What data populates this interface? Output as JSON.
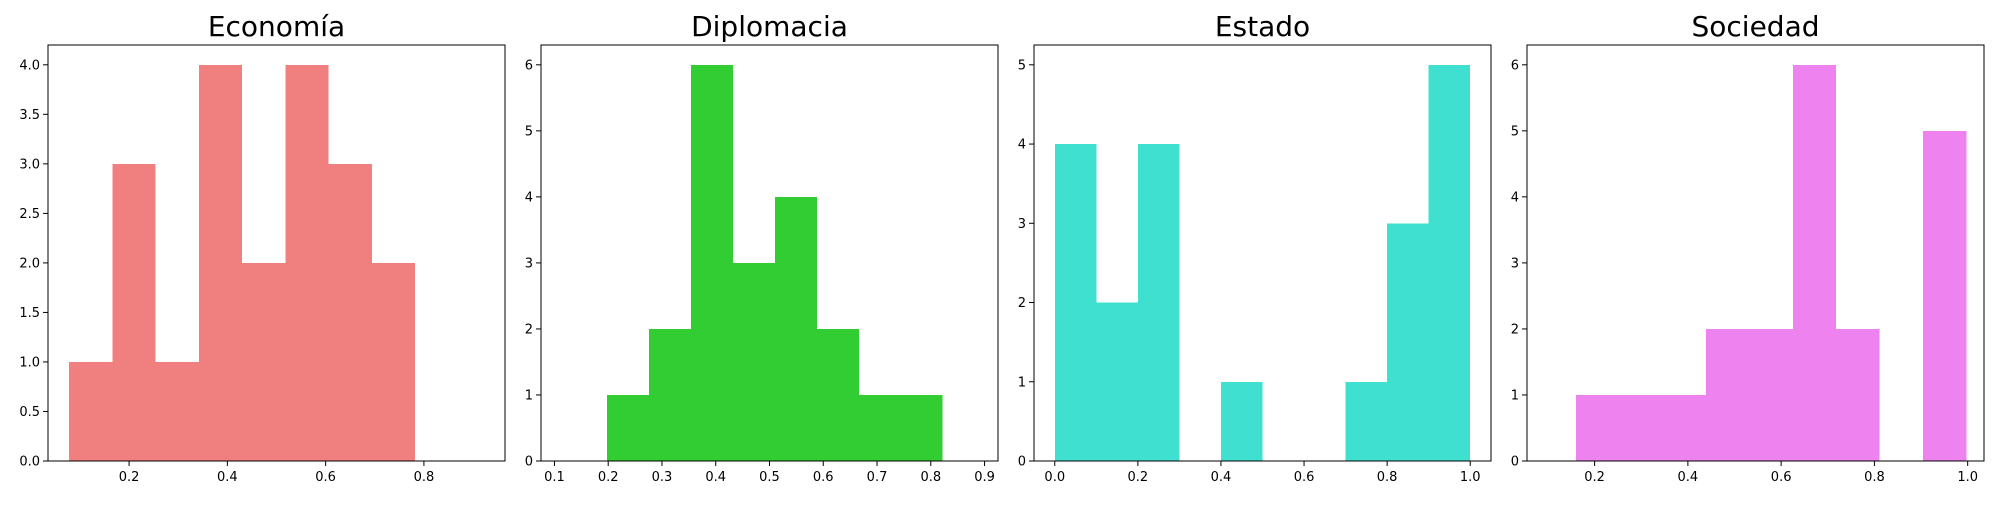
{
  "chart_data": [
    {
      "type": "bar",
      "title": "Economía",
      "color": "#f08080",
      "xlim": [
        0.035,
        0.965
      ],
      "ylim": [
        0,
        4.2
      ],
      "xticks": [
        0.2,
        0.4,
        0.6,
        0.8
      ],
      "xtick_labels": [
        "0.2",
        "0.4",
        "0.6",
        "0.8"
      ],
      "yticks": [
        0,
        0.5,
        1,
        1.5,
        2,
        2.5,
        3,
        3.5,
        4
      ],
      "ytick_labels": [
        "0.0",
        "0.5",
        "1.0",
        "1.5",
        "2.0",
        "2.5",
        "3.0",
        "3.5",
        "4.0"
      ],
      "bin_edges": [
        0.078,
        0.166,
        0.254,
        0.342,
        0.43,
        0.518,
        0.606,
        0.694,
        0.782
      ],
      "values": [
        1,
        3,
        1,
        4,
        2,
        4,
        3,
        2
      ]
    },
    {
      "type": "bar",
      "title": "Diplomacia",
      "color": "#32cd32",
      "xlim": [
        0.075,
        0.925
      ],
      "ylim": [
        0,
        6.3
      ],
      "xticks": [
        0.1,
        0.2,
        0.3,
        0.4,
        0.5,
        0.6,
        0.7,
        0.8,
        0.9
      ],
      "xtick_labels": [
        "0.1",
        "0.2",
        "0.3",
        "0.4",
        "0.5",
        "0.6",
        "0.7",
        "0.8",
        "0.9"
      ],
      "yticks": [
        0,
        1,
        2,
        3,
        4,
        5,
        6
      ],
      "ytick_labels": [
        "0",
        "1",
        "2",
        "3",
        "4",
        "5",
        "6"
      ],
      "bin_edges": [
        0.198,
        0.276,
        0.354,
        0.432,
        0.51,
        0.588,
        0.666,
        0.744,
        0.822
      ],
      "values": [
        1,
        2,
        6,
        3,
        4,
        2,
        1,
        1
      ]
    },
    {
      "type": "bar",
      "title": "Estado",
      "color": "#40e0d0",
      "xlim": [
        -0.05,
        1.05
      ],
      "ylim": [
        0,
        5.25
      ],
      "xticks": [
        0.0,
        0.2,
        0.4,
        0.6,
        0.8,
        1.0
      ],
      "xtick_labels": [
        "0.0",
        "0.2",
        "0.4",
        "0.6",
        "0.8",
        "1.0"
      ],
      "yticks": [
        0,
        1,
        2,
        3,
        4,
        5
      ],
      "ytick_labels": [
        "0",
        "1",
        "2",
        "3",
        "4",
        "5"
      ],
      "bin_edges": [
        0.0,
        0.1,
        0.2,
        0.3,
        0.4,
        0.5,
        0.6,
        0.7,
        0.8,
        0.9,
        1.0
      ],
      "values": [
        4,
        2,
        4,
        0,
        1,
        0,
        0,
        1,
        3,
        5
      ]
    },
    {
      "type": "bar",
      "title": "Sociedad",
      "color": "#ee82ee",
      "xlim": [
        0.055,
        1.035
      ],
      "ylim": [
        0,
        6.3
      ],
      "xticks": [
        0.2,
        0.4,
        0.6,
        0.8,
        1.0
      ],
      "xtick_labels": [
        "0.2",
        "0.4",
        "0.6",
        "0.8",
        "1.0"
      ],
      "yticks": [
        0,
        1,
        2,
        3,
        4,
        5,
        6
      ],
      "ytick_labels": [
        "0",
        "1",
        "2",
        "3",
        "4",
        "5",
        "6"
      ],
      "bin_edges": [
        0.16,
        0.253,
        0.346,
        0.439,
        0.532,
        0.625,
        0.718,
        0.811,
        0.904,
        0.997
      ],
      "values": [
        1,
        1,
        1,
        2,
        2,
        6,
        2,
        0,
        5
      ]
    }
  ]
}
